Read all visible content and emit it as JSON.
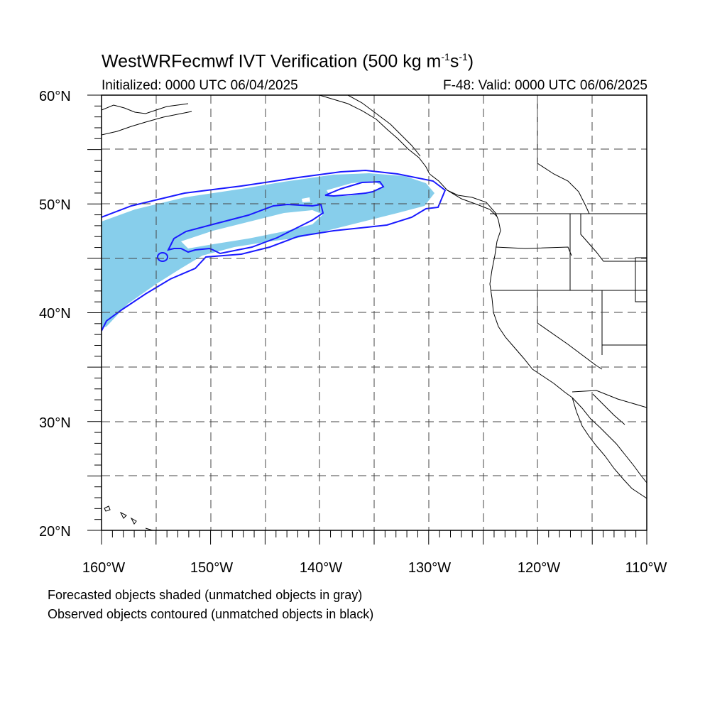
{
  "title": {
    "prefix": "WestWRFecmwf IVT Verification (500 kg m",
    "exp1": "-1",
    "mid": "s",
    "exp2": "-1",
    "suffix": ")"
  },
  "subtitle": {
    "initialized": "Initialized: 0000 UTC 06/04/2025",
    "valid": "F-48: Valid: 0000 UTC 06/06/2025"
  },
  "axes": {
    "lat_labels": [
      "60°N",
      "50°N",
      "40°N",
      "30°N",
      "20°N"
    ],
    "lon_labels": [
      "160°W",
      "150°W",
      "140°W",
      "130°W",
      "120°W",
      "110°W"
    ],
    "lat_range": [
      20,
      60
    ],
    "lon_range": [
      -160,
      -110
    ],
    "grid_spacing_deg": 5,
    "grid_style": "dashed"
  },
  "notes": {
    "line1": "Forecasted objects shaded (unmatched objects in gray)",
    "line2": "Observed objects contoured (unmatched objects in black)"
  },
  "colors": {
    "forecast_fill": "#87ceeb",
    "observed_contour": "#1a1aff",
    "coastline": "#000000",
    "grid": "#444444"
  }
}
